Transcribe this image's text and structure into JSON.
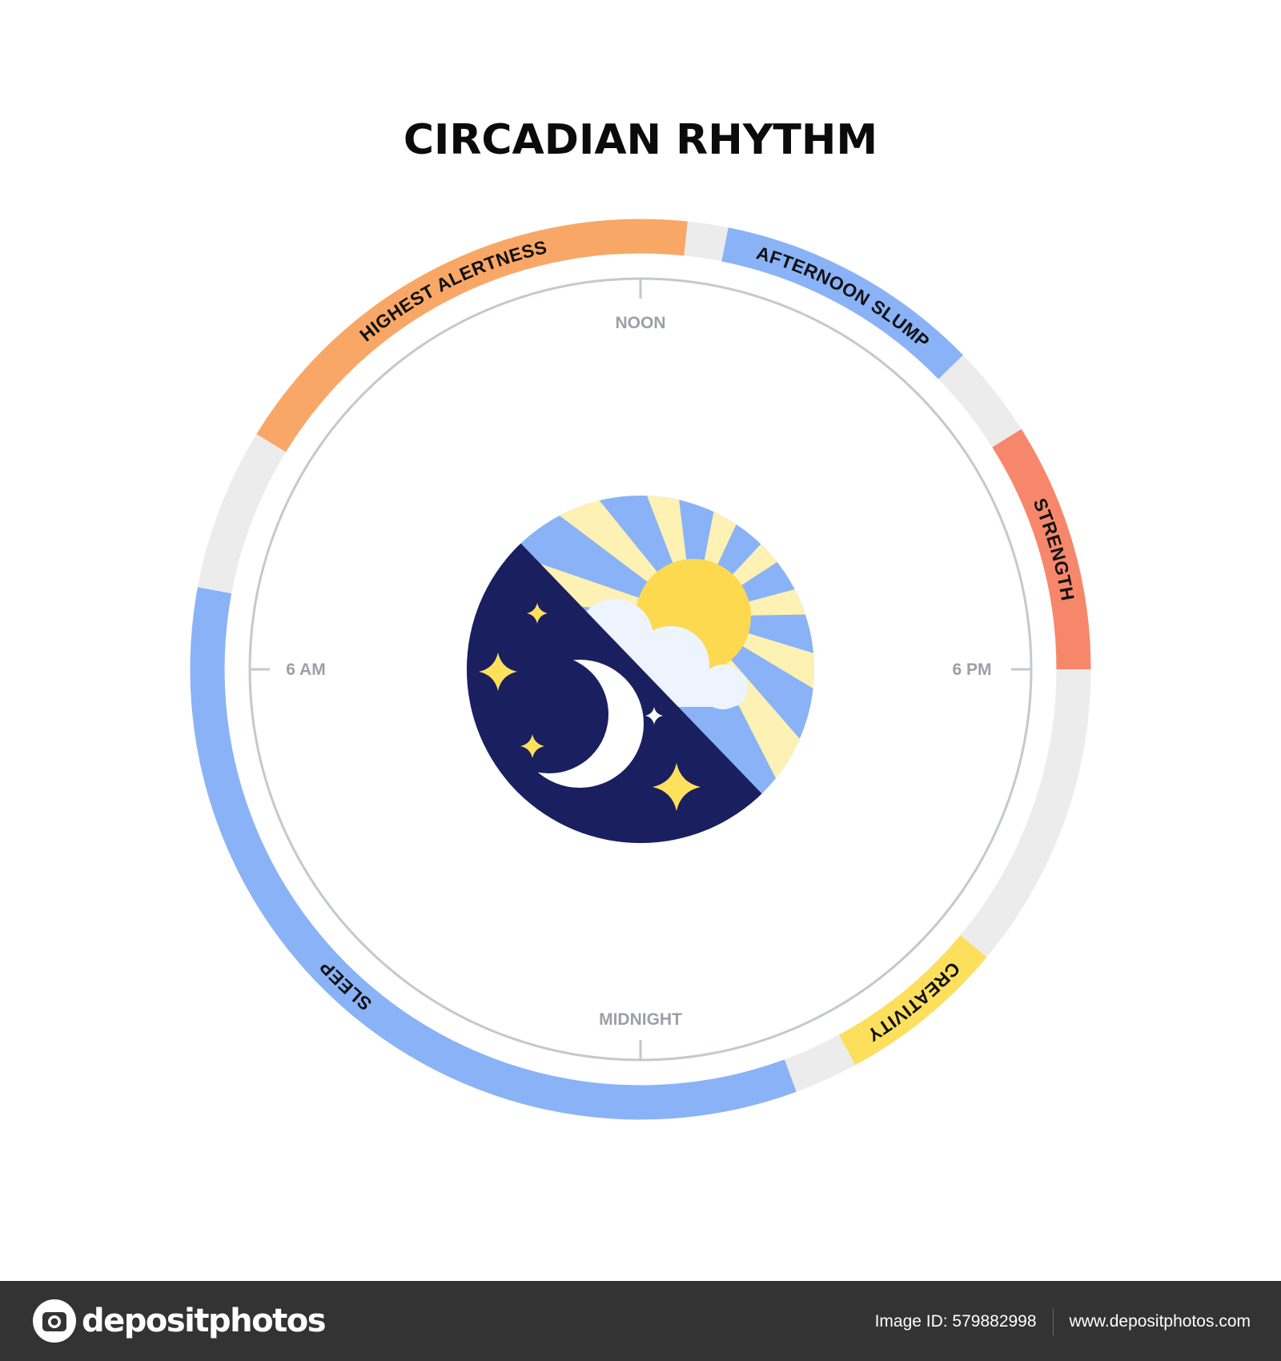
{
  "title": "CIRCADIAN RHYTHM",
  "clock_labels": {
    "top": "NOON",
    "right": "6 PM",
    "bottom": "MIDNIGHT",
    "left": "6 AM"
  },
  "clock": {
    "hours_per_turn": 24,
    "top_hour": 12
  },
  "ring_background_color": "#ECECEC",
  "segments": [
    {
      "label": "HIGHEST ALERTNESS",
      "start_hour": 8.1,
      "end_hour": 12.4,
      "color": "#F9A766"
    },
    {
      "label": "AFTERNOON SLUMP",
      "start_hour": 12.75,
      "end_hour": 15.05,
      "color": "#8AB2F7"
    },
    {
      "label": "STRENGTH",
      "start_hour": 15.85,
      "end_hour": 18.0,
      "color": "#F7876B"
    },
    {
      "label": "CREATIVITY",
      "start_hour": 20.65,
      "end_hour": 22.1,
      "color": "#FDDF5E"
    },
    {
      "label": "SLEEP",
      "start_hour": 22.65,
      "end_hour": 6.7,
      "color": "#8AB2F7"
    }
  ],
  "center_icon": {
    "name": "day-night-icon",
    "night_color": "#1A1F5F",
    "sky_color": "#8AB2F7",
    "ray_color": "#FDF1B3",
    "sun_color": "#FDD94F",
    "cloud_color": "#EDF4FE",
    "star_color": "#FDE15C"
  },
  "footer": {
    "logo_text": "depositphotos",
    "image_id": "Image ID: 579882998",
    "url": "www.depositphotos.com"
  }
}
